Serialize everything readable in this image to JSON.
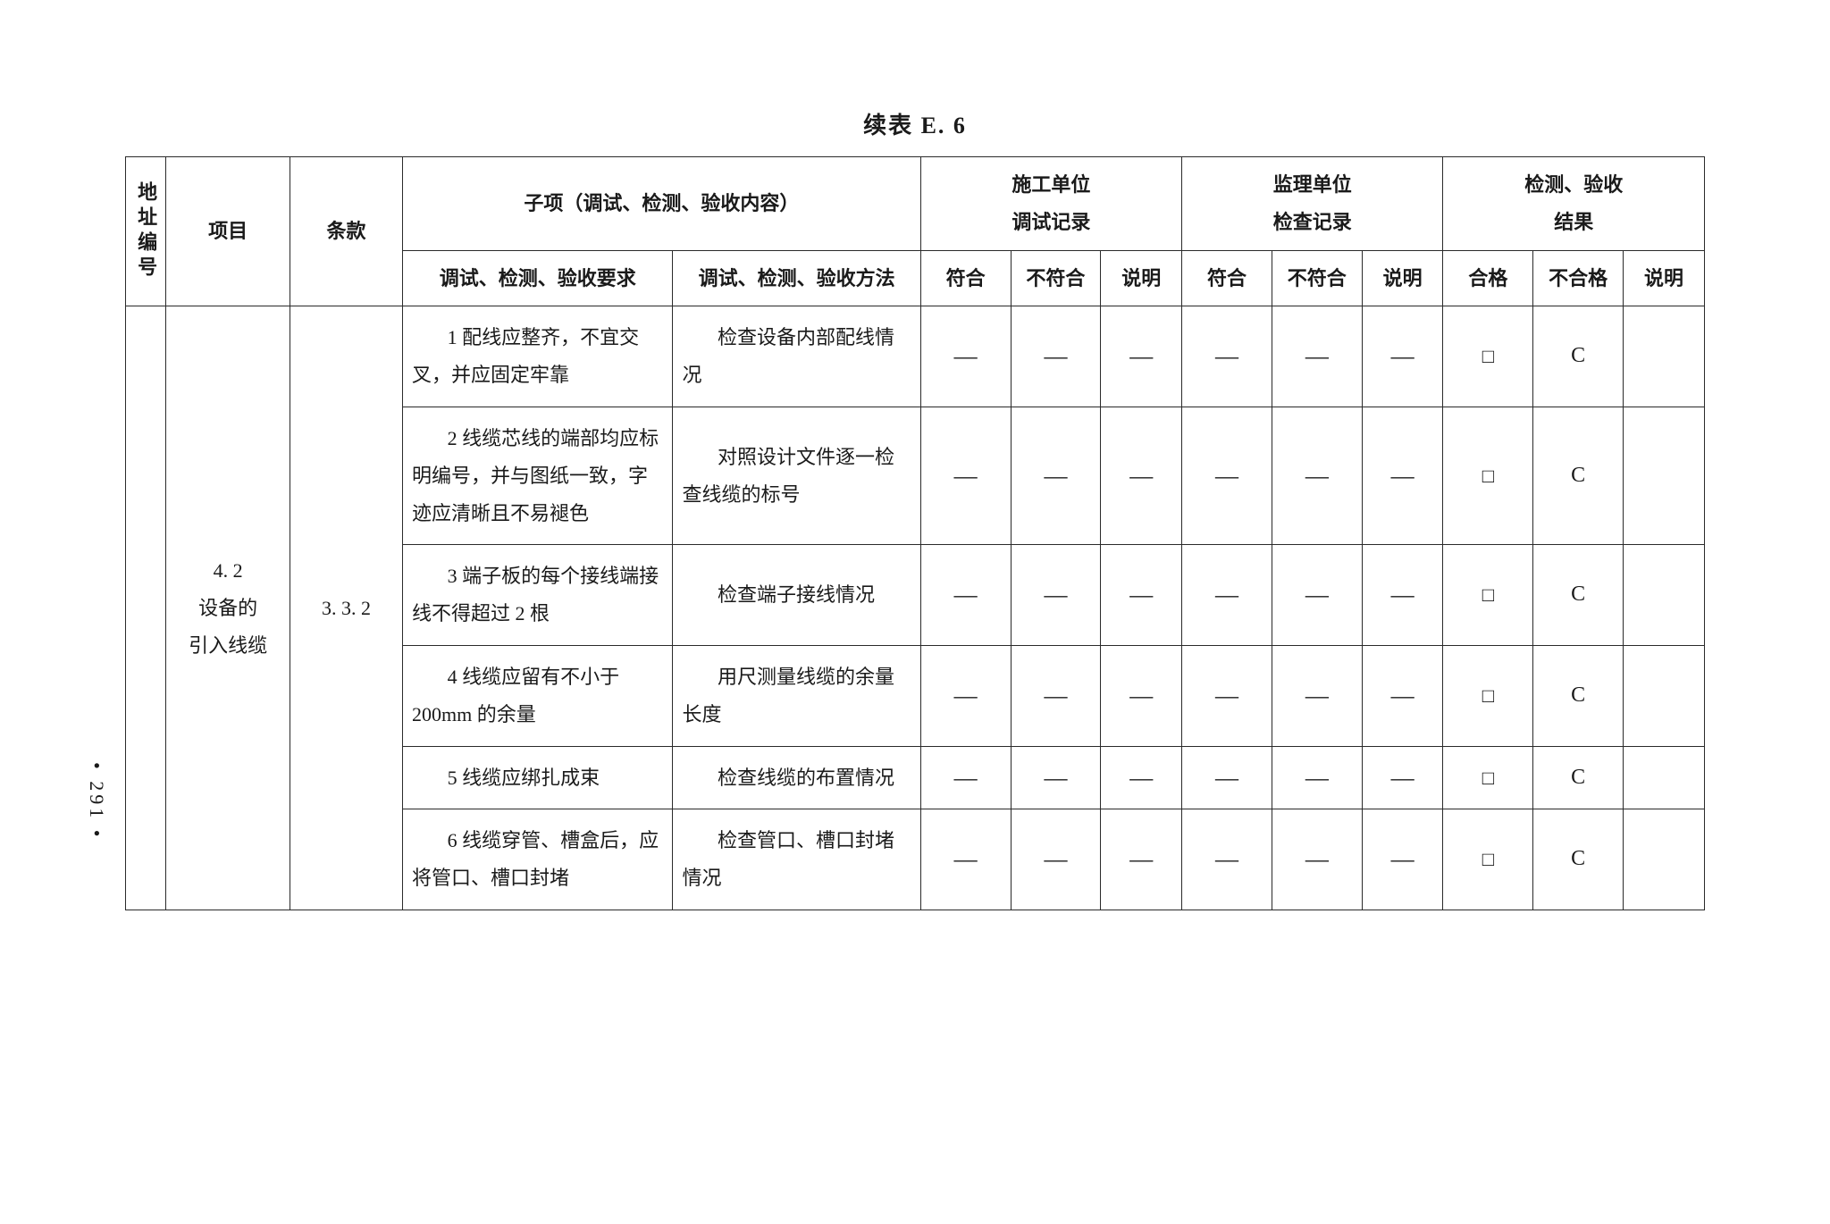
{
  "title": "续表 E. 6",
  "pageNumber": "• 291 •",
  "headers": {
    "addr": "地址编号",
    "project": "项目",
    "clause": "条款",
    "subitem": "子项（调试、检测、验收内容）",
    "construction": "施工单位\n调试记录",
    "supervision": "监理单位\n检查记录",
    "result": "检测、验收\n结果",
    "reqCol": "调试、检测、验收要求",
    "methodCol": "调试、检测、验收方法",
    "conform": "符合",
    "nonconform": "不符合",
    "desc": "说明",
    "pass": "合格",
    "fail": "不合格"
  },
  "groupProject": "4. 2\n设备的\n引入线缆",
  "groupClause": "3. 3. 2",
  "rows": [
    {
      "req": "1 配线应整齐，不宜交叉，并应固定牢靠",
      "method": "检查设备内部配线情况",
      "cells": [
        "—",
        "—",
        "—",
        "—",
        "—",
        "—",
        "□",
        "C",
        ""
      ]
    },
    {
      "req": "2 线缆芯线的端部均应标明编号，并与图纸一致，字迹应清晰且不易褪色",
      "method": "对照设计文件逐一检查线缆的标号",
      "cells": [
        "—",
        "—",
        "—",
        "—",
        "—",
        "—",
        "□",
        "C",
        ""
      ]
    },
    {
      "req": "3 端子板的每个接线端接线不得超过 2 根",
      "method": "检查端子接线情况",
      "cells": [
        "—",
        "—",
        "—",
        "—",
        "—",
        "—",
        "□",
        "C",
        ""
      ]
    },
    {
      "req": "4 线缆应留有不小于 200mm 的余量",
      "method": "用尺测量线缆的余量长度",
      "cells": [
        "—",
        "—",
        "—",
        "—",
        "—",
        "—",
        "□",
        "C",
        ""
      ]
    },
    {
      "req": "5 线缆应绑扎成束",
      "method": "检查线缆的布置情况",
      "cells": [
        "—",
        "—",
        "—",
        "—",
        "—",
        "—",
        "□",
        "C",
        ""
      ]
    },
    {
      "req": "6 线缆穿管、槽盒后，应将管口、槽口封堵",
      "method": "检查管口、槽口封堵情况",
      "cells": [
        "—",
        "—",
        "—",
        "—",
        "—",
        "—",
        "□",
        "C",
        ""
      ]
    }
  ],
  "style": {
    "border_color": "#2a2a2a",
    "text_color": "#1a1a1a",
    "bg": "#ffffff",
    "font_family": "SimSun",
    "title_fontsize": 26,
    "cell_fontsize": 22
  }
}
